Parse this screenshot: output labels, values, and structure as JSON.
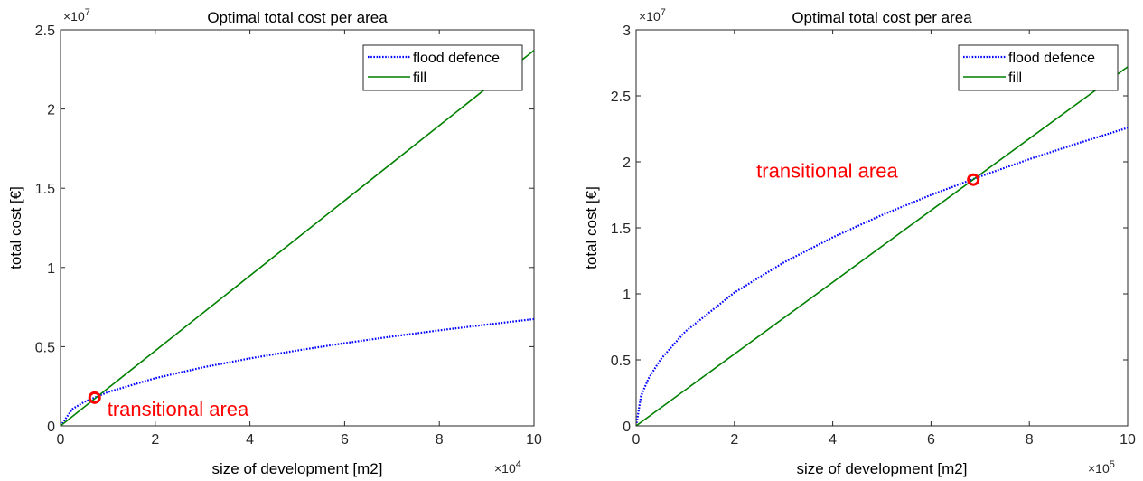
{
  "chart_data": [
    {
      "type": "line",
      "title": "Optimal total cost per area",
      "xlabel": "size of development [m2]",
      "ylabel": "total cost [€]",
      "x_exponent": "4",
      "y_exponent": "7",
      "xlim": [
        0,
        10
      ],
      "ylim": [
        0,
        2.5
      ],
      "xticks": [
        0,
        2,
        4,
        6,
        8,
        10
      ],
      "yticks": [
        0,
        0.5,
        1,
        1.5,
        2,
        2.5
      ],
      "xtick_labels": [
        "0",
        "2",
        "4",
        "6",
        "8",
        "10"
      ],
      "ytick_labels": [
        "0",
        "0.5",
        "1",
        "1.5",
        "2",
        "2.5"
      ],
      "x_multiplier_label": "×10",
      "y_multiplier_label": "×10",
      "legend_position": "top-right",
      "grid": false,
      "series": [
        {
          "name": "flood defence",
          "style": "dotted",
          "color": "#0000ff",
          "x": [
            0,
            0.25,
            0.5,
            1,
            2,
            3,
            4,
            5,
            6,
            7,
            8,
            9,
            10
          ],
          "y": [
            0,
            0.106,
            0.151,
            0.213,
            0.301,
            0.369,
            0.426,
            0.476,
            0.522,
            0.564,
            0.603,
            0.639,
            0.674
          ]
        },
        {
          "name": "fill",
          "style": "solid",
          "color": "#008000",
          "x": [
            0,
            10
          ],
          "y": [
            0,
            2.37
          ]
        }
      ],
      "annotations": [
        {
          "text": "transitional area",
          "x": 0.72,
          "y": 0.178,
          "marker_color": "#ff0000"
        }
      ]
    },
    {
      "type": "line",
      "title": "Optimal total cost per area",
      "xlabel": "size of development [m2]",
      "ylabel": "total cost [€]",
      "x_exponent": "5",
      "y_exponent": "7",
      "xlim": [
        0,
        10
      ],
      "ylim": [
        0,
        3
      ],
      "xticks": [
        0,
        2,
        4,
        6,
        8,
        10
      ],
      "yticks": [
        0,
        0.5,
        1,
        1.5,
        2,
        2.5,
        3
      ],
      "xtick_labels": [
        "0",
        "2",
        "4",
        "6",
        "8",
        "10"
      ],
      "ytick_labels": [
        "0",
        "0.5",
        "1",
        "1.5",
        "2",
        "2.5",
        "3"
      ],
      "x_multiplier_label": "×10",
      "y_multiplier_label": "×10",
      "legend_position": "top-right",
      "grid": false,
      "series": [
        {
          "name": "flood defence",
          "style": "dotted",
          "color": "#0000ff",
          "x": [
            0,
            0.1,
            0.25,
            0.5,
            1,
            2,
            3,
            4,
            5,
            6,
            7,
            8,
            9,
            10
          ],
          "y": [
            0,
            0.226,
            0.357,
            0.505,
            0.714,
            1.01,
            1.237,
            1.428,
            1.597,
            1.749,
            1.889,
            2.02,
            2.142,
            2.258
          ]
        },
        {
          "name": "fill",
          "style": "solid",
          "color": "#008000",
          "x": [
            0,
            10
          ],
          "y": [
            0,
            2.72
          ]
        }
      ],
      "annotations": [
        {
          "text": "transitional area",
          "x": 6.86,
          "y": 1.865,
          "marker_color": "#ff0000"
        }
      ]
    }
  ]
}
